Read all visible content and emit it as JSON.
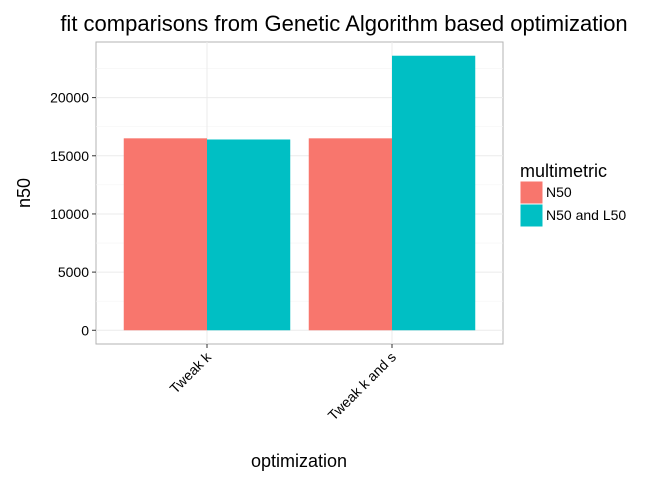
{
  "chart_data": {
    "type": "bar",
    "title": "fit comparisons from Genetic Algorithm based optimization",
    "xlabel": "optimization",
    "ylabel": "n50",
    "categories": [
      "Tweak k",
      "Tweak k and s"
    ],
    "series": [
      {
        "name": "N50",
        "color": "#F8766D",
        "values": [
          16500,
          16500
        ]
      },
      {
        "name": "N50 and L50",
        "color": "#00BFC4",
        "values": [
          16400,
          23600
        ]
      }
    ],
    "ylim": [
      -1180,
      24780
    ],
    "yticks": [
      0,
      5000,
      10000,
      15000,
      20000
    ],
    "grid": true,
    "legend": {
      "title": "multimetric",
      "position": "right"
    }
  }
}
